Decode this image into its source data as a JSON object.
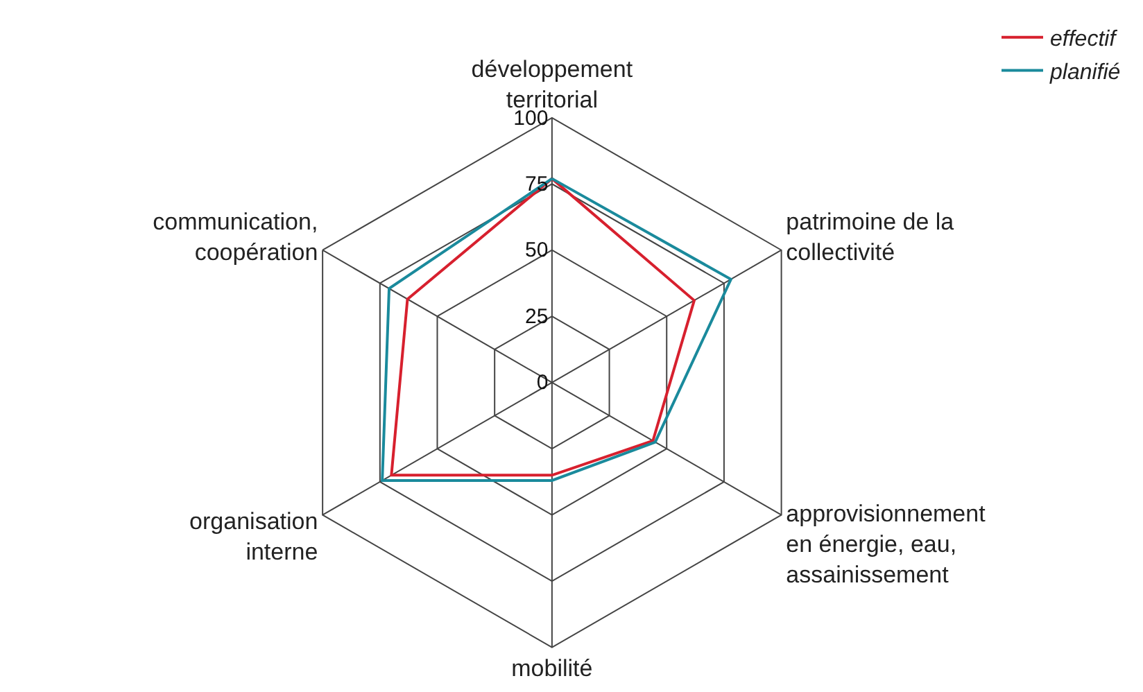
{
  "chart_data": {
    "type": "radar",
    "categories": [
      "développement territorial",
      "patrimoine de la collectivité",
      "approvisionnement en énergie, eau, assainissement",
      "mobilité",
      "organisation interne",
      "communication, coopération"
    ],
    "series": [
      {
        "name": "effectif",
        "color": "#d7202e",
        "values": [
          77,
          62,
          44,
          35,
          70,
          63
        ]
      },
      {
        "name": "planifié",
        "color": "#1a8a9c",
        "values": [
          77,
          78,
          45,
          37,
          74,
          71
        ]
      }
    ],
    "ylim": [
      0,
      100
    ],
    "yticks": [
      0,
      25,
      50,
      75,
      100
    ],
    "legend": "top right",
    "marker": "none",
    "line_style": "solid"
  }
}
